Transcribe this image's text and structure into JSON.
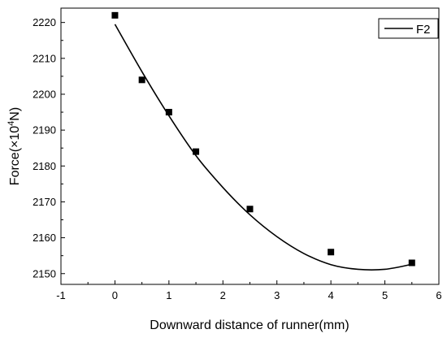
{
  "chart_data": {
    "type": "scatter",
    "xlabel": "Downward distance of runner(mm)",
    "ylabel_prefix": "Force(×10",
    "ylabel_sup": "4",
    "ylabel_suffix": "N)",
    "xlim": [
      -1,
      6
    ],
    "ylim": [
      2147,
      2224
    ],
    "x_ticks": [
      -1,
      0,
      1,
      2,
      3,
      4,
      5,
      6
    ],
    "y_ticks": [
      2150,
      2160,
      2170,
      2180,
      2190,
      2200,
      2210,
      2220
    ],
    "legend": {
      "position": "top-right",
      "label": "F2"
    },
    "points": [
      {
        "x": 0,
        "y": 2222
      },
      {
        "x": 0.5,
        "y": 2204
      },
      {
        "x": 1,
        "y": 2195
      },
      {
        "x": 1.5,
        "y": 2184
      },
      {
        "x": 2.5,
        "y": 2168
      },
      {
        "x": 4,
        "y": 2156
      },
      {
        "x": 5.5,
        "y": 2153
      }
    ],
    "fit_curve": {
      "name": "F2",
      "x": [
        0,
        0.5,
        1,
        1.5,
        2,
        2.5,
        3,
        3.5,
        4,
        4.5,
        5,
        5.5
      ],
      "y": [
        2219.5,
        2206.3,
        2194.0,
        2182.9,
        2174.0,
        2166.4,
        2160.3,
        2155.6,
        2152.5,
        2151.2,
        2151.2,
        2152.6
      ]
    },
    "colors": {
      "marker": "#000000",
      "line": "#000000",
      "axis": "#000000"
    }
  }
}
